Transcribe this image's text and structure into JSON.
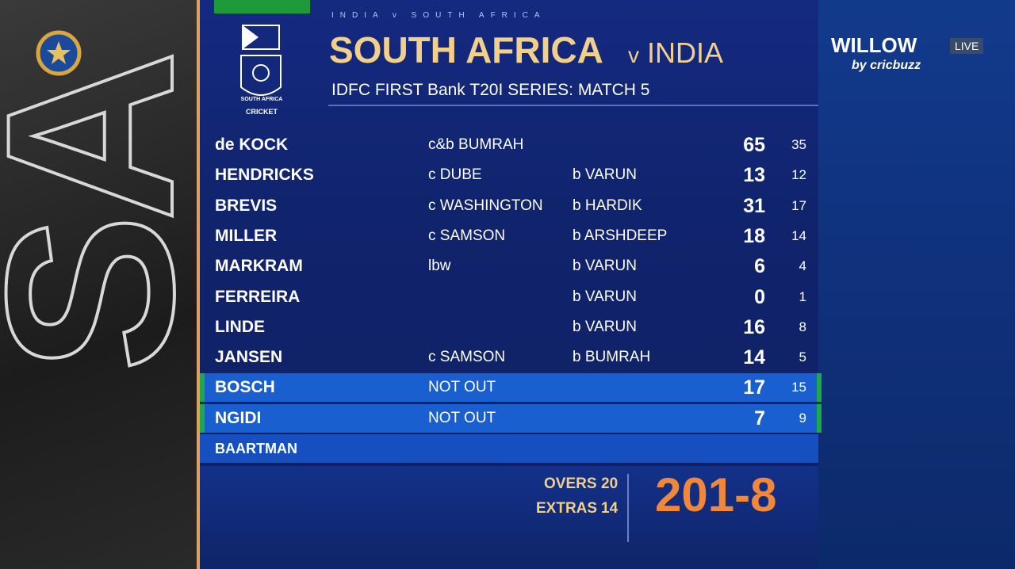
{
  "header": {
    "matchup": "INDIA v SOUTH AFRICA",
    "team": "SOUTH AFRICA",
    "vs": "v",
    "opponent": "INDIA",
    "series": "IDFC FIRST Bank T20I SERIES: MATCH 5",
    "logo_name": "SOUTH AFRICA",
    "logo_sub": "CRICKET"
  },
  "broadcaster": {
    "name": "WILLOW",
    "live": "LIVE",
    "by": "by cricbuzz"
  },
  "batting": [
    {
      "name": "de KOCK",
      "dismissal": "c&b BUMRAH",
      "runs": 65,
      "balls": 35
    },
    {
      "name": "HENDRICKS",
      "dismissal": "c DUBE",
      "bowler": "b VARUN",
      "runs": 13,
      "balls": 12
    },
    {
      "name": "BREVIS",
      "dismissal": "c WASHINGTON",
      "bowler": "b HARDIK",
      "runs": 31,
      "balls": 17
    },
    {
      "name": "MILLER",
      "dismissal": "c SAMSON",
      "bowler": "b ARSHDEEP",
      "runs": 18,
      "balls": 14
    },
    {
      "name": "MARKRAM",
      "dismissal": "lbw",
      "bowler": "b VARUN",
      "runs": 6,
      "balls": 4
    },
    {
      "name": "FERREIRA",
      "bowler": "b VARUN",
      "runs": 0,
      "balls": 1
    },
    {
      "name": "LINDE",
      "bowler": "b VARUN",
      "runs": 16,
      "balls": 8
    },
    {
      "name": "JANSEN",
      "dismissal": "c SAMSON",
      "bowler": "b BUMRAH",
      "runs": 14,
      "balls": 5
    },
    {
      "name": "BOSCH",
      "dismissal": "NOT OUT",
      "runs": 17,
      "balls": 15
    },
    {
      "name": "NGIDI",
      "dismissal": "NOT OUT",
      "runs": 7,
      "balls": 9
    },
    {
      "name": "BAARTMAN"
    }
  ],
  "totals": {
    "overs_label": "OVERS",
    "overs": 20,
    "extras_label": "EXTRAS",
    "extras": 14,
    "score": "201-8"
  }
}
